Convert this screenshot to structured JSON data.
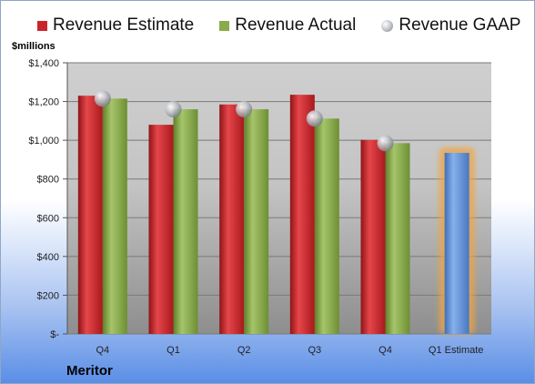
{
  "brand": "Meritor",
  "colors": {
    "estimate": "#c9262b",
    "actual": "#89ab49",
    "gaap": "#b9bcc2",
    "forecast": "#5b8fd6",
    "forecast_glow": "#f0a441"
  },
  "chart_data": {
    "type": "bar",
    "ylabel": "$millions",
    "ylim": [
      0,
      1400
    ],
    "yticks": [
      "$-",
      "$200",
      "$400",
      "$600",
      "$800",
      "$1,000",
      "$1,200",
      "$1,400"
    ],
    "ytick_values": [
      0,
      200,
      400,
      600,
      800,
      1000,
      1200,
      1400
    ],
    "categories": [
      "Q4",
      "Q1",
      "Q2",
      "Q3",
      "Q4",
      "Q1 Estimate"
    ],
    "series": [
      {
        "name": "Revenue Estimate",
        "values": [
          1230,
          1080,
          1185,
          1235,
          1002,
          935
        ]
      },
      {
        "name": "Revenue Actual",
        "values": [
          1215,
          1160,
          1160,
          1112,
          985,
          null
        ]
      },
      {
        "name": "Revenue GAAP",
        "values": [
          1215,
          1160,
          1160,
          1112,
          985,
          null
        ]
      }
    ],
    "legend": "top",
    "grid": true
  }
}
